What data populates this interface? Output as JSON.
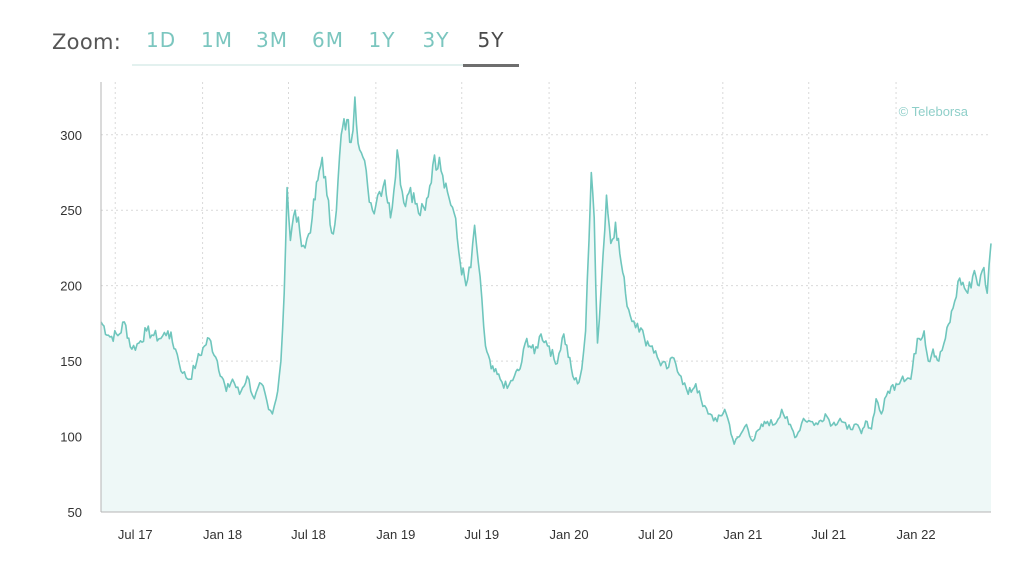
{
  "zoom": {
    "label": "Zoom:",
    "options": [
      "1D",
      "1M",
      "3M",
      "6M",
      "1Y",
      "3Y",
      "5Y"
    ],
    "selected": "5Y"
  },
  "colors": {
    "line": "#6fc6bd",
    "fill": "#eef8f7",
    "accent": "#7bc6bf",
    "grid": "#d9d9d9"
  },
  "chart_data": {
    "type": "area",
    "credit": "© Teleborsa",
    "title": "",
    "xlabel": "",
    "ylabel": "",
    "ylim": [
      50,
      335
    ],
    "xlim": [
      "2017-06-01",
      "2022-07-20"
    ],
    "y_ticks": [
      50,
      100,
      150,
      200,
      250,
      300
    ],
    "x_ticks": [
      {
        "date": "2017-07-01",
        "label": "Jul 17"
      },
      {
        "date": "2018-01-01",
        "label": "Jan 18"
      },
      {
        "date": "2018-07-01",
        "label": "Jul 18"
      },
      {
        "date": "2019-01-01",
        "label": "Jan 19"
      },
      {
        "date": "2019-07-01",
        "label": "Jul 19"
      },
      {
        "date": "2020-01-01",
        "label": "Jan 20"
      },
      {
        "date": "2020-07-01",
        "label": "Jul 20"
      },
      {
        "date": "2021-01-01",
        "label": "Jan 21"
      },
      {
        "date": "2021-07-01",
        "label": "Jul 21"
      },
      {
        "date": "2022-01-01",
        "label": "Jan 22"
      }
    ],
    "grid": true,
    "series": [
      {
        "points": [
          [
            "2017-06-01",
            176
          ],
          [
            "2017-06-20",
            166
          ],
          [
            "2017-07-10",
            168
          ],
          [
            "2017-07-20",
            176
          ],
          [
            "2017-08-05",
            158
          ],
          [
            "2017-08-20",
            162
          ],
          [
            "2017-09-05",
            170
          ],
          [
            "2017-09-20",
            167
          ],
          [
            "2017-10-05",
            165
          ],
          [
            "2017-10-20",
            170
          ],
          [
            "2017-11-05",
            158
          ],
          [
            "2017-11-20",
            142
          ],
          [
            "2017-12-05",
            138
          ],
          [
            "2017-12-20",
            150
          ],
          [
            "2018-01-05",
            160
          ],
          [
            "2018-01-15",
            165
          ],
          [
            "2018-02-01",
            150
          ],
          [
            "2018-02-20",
            130
          ],
          [
            "2018-03-05",
            138
          ],
          [
            "2018-03-20",
            128
          ],
          [
            "2018-04-05",
            140
          ],
          [
            "2018-04-20",
            125
          ],
          [
            "2018-05-05",
            135
          ],
          [
            "2018-05-20",
            118
          ],
          [
            "2018-05-28",
            115
          ],
          [
            "2018-06-05",
            125
          ],
          [
            "2018-06-15",
            150
          ],
          [
            "2018-06-22",
            195
          ],
          [
            "2018-06-28",
            265
          ],
          [
            "2018-07-05",
            230
          ],
          [
            "2018-07-15",
            250
          ],
          [
            "2018-07-25",
            235
          ],
          [
            "2018-08-05",
            225
          ],
          [
            "2018-08-20",
            245
          ],
          [
            "2018-09-01",
            270
          ],
          [
            "2018-09-10",
            285
          ],
          [
            "2018-09-20",
            260
          ],
          [
            "2018-09-30",
            235
          ],
          [
            "2018-10-10",
            250
          ],
          [
            "2018-10-20",
            300
          ],
          [
            "2018-11-01",
            310
          ],
          [
            "2018-11-10",
            295
          ],
          [
            "2018-11-18",
            325
          ],
          [
            "2018-11-28",
            290
          ],
          [
            "2018-12-05",
            285
          ],
          [
            "2018-12-15",
            265
          ],
          [
            "2018-12-25",
            250
          ],
          [
            "2019-01-05",
            260
          ],
          [
            "2019-01-20",
            270
          ],
          [
            "2019-02-01",
            245
          ],
          [
            "2019-02-15",
            290
          ],
          [
            "2019-03-01",
            255
          ],
          [
            "2019-03-15",
            265
          ],
          [
            "2019-04-01",
            248
          ],
          [
            "2019-04-15",
            250
          ],
          [
            "2019-05-01",
            280
          ],
          [
            "2019-05-15",
            285
          ],
          [
            "2019-06-01",
            262
          ],
          [
            "2019-06-15",
            248
          ],
          [
            "2019-06-28",
            215
          ],
          [
            "2019-07-10",
            200
          ],
          [
            "2019-07-20",
            212
          ],
          [
            "2019-07-28",
            240
          ],
          [
            "2019-08-05",
            215
          ],
          [
            "2019-08-20",
            160
          ],
          [
            "2019-09-01",
            145
          ],
          [
            "2019-09-20",
            138
          ],
          [
            "2019-10-05",
            132
          ],
          [
            "2019-10-20",
            140
          ],
          [
            "2019-11-01",
            145
          ],
          [
            "2019-11-15",
            165
          ],
          [
            "2019-12-01",
            155
          ],
          [
            "2019-12-15",
            168
          ],
          [
            "2020-01-01",
            160
          ],
          [
            "2020-01-15",
            148
          ],
          [
            "2020-02-01",
            168
          ],
          [
            "2020-02-20",
            140
          ],
          [
            "2020-03-01",
            135
          ],
          [
            "2020-03-10",
            145
          ],
          [
            "2020-03-18",
            170
          ],
          [
            "2020-03-25",
            230
          ],
          [
            "2020-03-30",
            275
          ],
          [
            "2020-04-05",
            245
          ],
          [
            "2020-04-12",
            162
          ],
          [
            "2020-04-20",
            200
          ],
          [
            "2020-05-01",
            260
          ],
          [
            "2020-05-10",
            228
          ],
          [
            "2020-05-20",
            242
          ],
          [
            "2020-06-01",
            215
          ],
          [
            "2020-06-10",
            195
          ],
          [
            "2020-06-20",
            180
          ],
          [
            "2020-07-05",
            175
          ],
          [
            "2020-07-20",
            165
          ],
          [
            "2020-08-05",
            160
          ],
          [
            "2020-08-20",
            150
          ],
          [
            "2020-09-05",
            145
          ],
          [
            "2020-09-20",
            152
          ],
          [
            "2020-10-05",
            140
          ],
          [
            "2020-10-20",
            128
          ],
          [
            "2020-11-05",
            135
          ],
          [
            "2020-11-20",
            120
          ],
          [
            "2020-12-05",
            115
          ],
          [
            "2020-12-20",
            110
          ],
          [
            "2021-01-05",
            118
          ],
          [
            "2021-01-15",
            108
          ],
          [
            "2021-01-25",
            95
          ],
          [
            "2021-02-05",
            100
          ],
          [
            "2021-02-20",
            108
          ],
          [
            "2021-03-05",
            97
          ],
          [
            "2021-03-20",
            105
          ],
          [
            "2021-04-05",
            110
          ],
          [
            "2021-04-20",
            108
          ],
          [
            "2021-05-05",
            118
          ],
          [
            "2021-05-20",
            108
          ],
          [
            "2021-06-05",
            100
          ],
          [
            "2021-06-20",
            112
          ],
          [
            "2021-07-05",
            110
          ],
          [
            "2021-07-20",
            108
          ],
          [
            "2021-08-05",
            115
          ],
          [
            "2021-08-20",
            108
          ],
          [
            "2021-09-05",
            112
          ],
          [
            "2021-09-20",
            105
          ],
          [
            "2021-10-05",
            108
          ],
          [
            "2021-10-20",
            102
          ],
          [
            "2021-11-01",
            110
          ],
          [
            "2021-11-10",
            105
          ],
          [
            "2021-11-20",
            125
          ],
          [
            "2021-12-01",
            115
          ],
          [
            "2021-12-15",
            130
          ],
          [
            "2022-01-01",
            135
          ],
          [
            "2022-01-15",
            140
          ],
          [
            "2022-02-01",
            138
          ],
          [
            "2022-02-15",
            165
          ],
          [
            "2022-03-01",
            170
          ],
          [
            "2022-03-10",
            150
          ],
          [
            "2022-03-20",
            158
          ],
          [
            "2022-04-01",
            150
          ],
          [
            "2022-04-15",
            165
          ],
          [
            "2022-05-01",
            185
          ],
          [
            "2022-05-15",
            205
          ],
          [
            "2022-06-01",
            195
          ],
          [
            "2022-06-15",
            210
          ],
          [
            "2022-06-25",
            200
          ],
          [
            "2022-07-05",
            212
          ],
          [
            "2022-07-12",
            195
          ],
          [
            "2022-07-20",
            228
          ]
        ]
      }
    ]
  }
}
